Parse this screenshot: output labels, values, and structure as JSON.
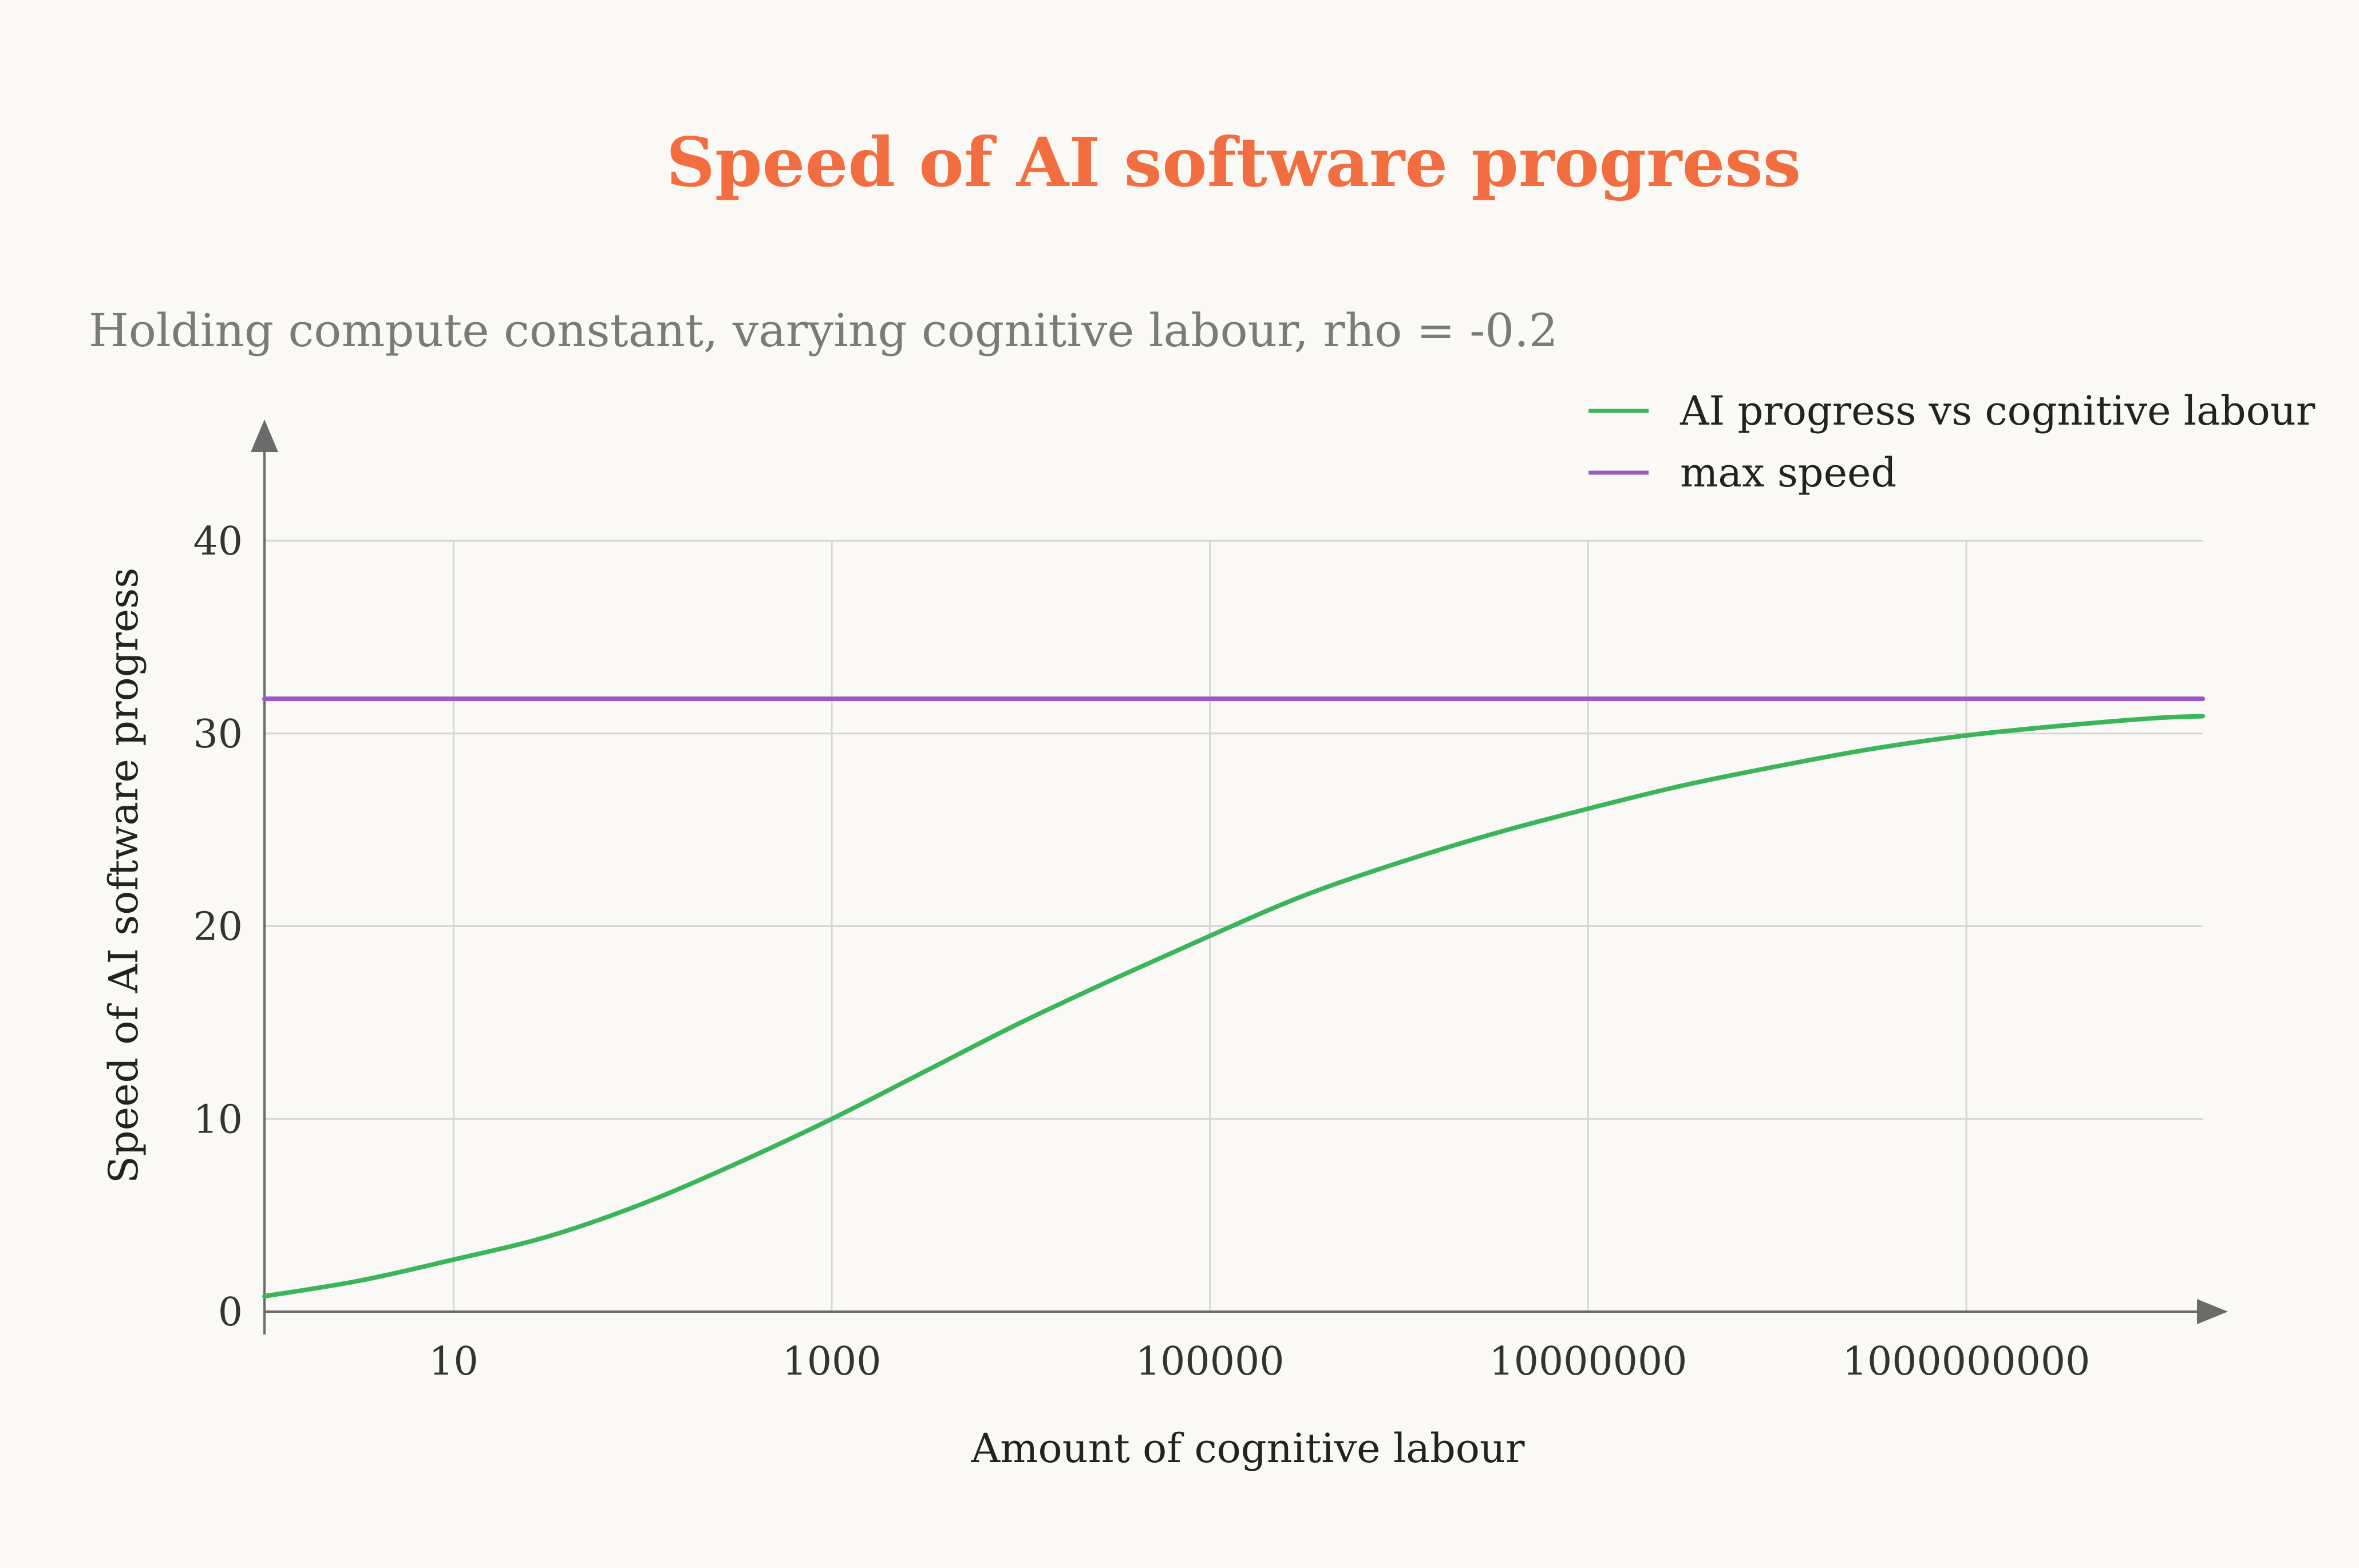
{
  "chart_data": {
    "type": "line",
    "title": "Speed of AI software progress",
    "subtitle": "Holding compute constant, varying cognitive labour, rho = -0.2",
    "xlabel": "Amount of cognitive labour",
    "ylabel": "Speed of AI software progress",
    "xscale": "log10",
    "xlim_log10": [
      0,
      10.25
    ],
    "ylim": [
      0,
      40
    ],
    "x_ticks": [
      "10",
      "1000",
      "100000",
      "10000000",
      "1000000000"
    ],
    "x_ticks_log10": [
      1,
      3,
      5,
      7,
      9
    ],
    "y_ticks": [
      0,
      10,
      20,
      30,
      40
    ],
    "grid": true,
    "legend_position": "top-right",
    "colors": {
      "title": "#f26d40",
      "progress": "#3cb55a",
      "max_speed": "#9b59c6",
      "grid": "#d6d6d6",
      "axis": "#6b6b6b"
    },
    "series": [
      {
        "name": "AI progress vs cognitive labour",
        "key": "progress",
        "x_log10": [
          0,
          0.5,
          1,
          1.5,
          2,
          2.5,
          3,
          3.5,
          4,
          4.5,
          5,
          5.5,
          6,
          6.5,
          7,
          7.5,
          8,
          8.5,
          9,
          9.5,
          10,
          10.25
        ],
        "values": [
          0.8,
          1.6,
          2.7,
          3.9,
          5.6,
          7.7,
          10.0,
          12.5,
          15.0,
          17.3,
          19.5,
          21.6,
          23.3,
          24.8,
          26.1,
          27.3,
          28.3,
          29.2,
          29.9,
          30.4,
          30.8,
          30.9
        ]
      },
      {
        "name": "max speed",
        "key": "max_speed",
        "x_log10": [
          0,
          10.25
        ],
        "values": [
          31.8,
          31.8
        ]
      }
    ]
  }
}
